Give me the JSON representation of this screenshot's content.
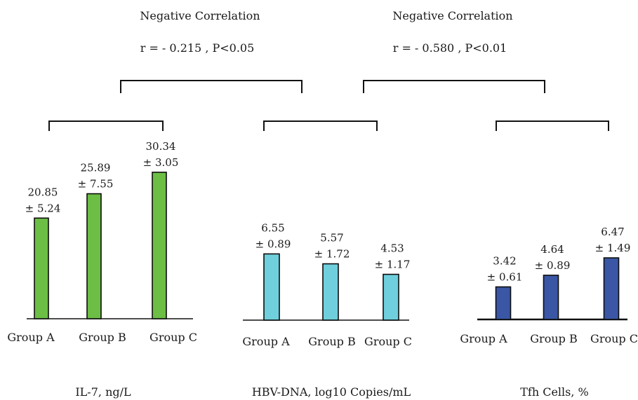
{
  "correlations": [
    {
      "title": "Negative Correlation",
      "stat": "r = - 0.215 , P<0.05"
    },
    {
      "title": "Negative Correlation",
      "stat": "r = - 0.580 , P<0.01"
    }
  ],
  "chart_data": [
    {
      "type": "bar",
      "title": "",
      "xlabel": "IL-7, ng/L",
      "ylabel": "",
      "categories": [
        "Group A",
        "Group B",
        "Group C"
      ],
      "values": [
        20.85,
        25.89,
        30.34
      ],
      "labels": [
        [
          "20.85",
          "± 5.24"
        ],
        [
          "25.89",
          "± 7.55"
        ],
        [
          "30.34",
          "± 3.05"
        ]
      ],
      "sd": [
        5.24,
        7.55,
        3.05
      ],
      "color": "#6cbe45",
      "ylim": [
        0,
        37
      ]
    },
    {
      "type": "bar",
      "title": "",
      "xlabel": "HBV-DNA, log10 Copies/mL",
      "ylabel": "",
      "categories": [
        "Group A",
        "Group B",
        "Group C"
      ],
      "values": [
        6.55,
        5.57,
        4.53
      ],
      "labels": [
        [
          "6.55",
          "± 0.89"
        ],
        [
          "5.57",
          "± 1.72"
        ],
        [
          "4.53",
          "± 1.17"
        ]
      ],
      "sd": [
        0.89,
        1.72,
        1.17
      ],
      "color": "#6fcfdc",
      "ylim": [
        0,
        16
      ]
    },
    {
      "type": "bar",
      "title": "",
      "xlabel": "Tfh Cells, %",
      "ylabel": "",
      "categories": [
        "Group A",
        "Group B",
        "Group C"
      ],
      "values": [
        3.42,
        4.64,
        6.47
      ],
      "labels": [
        [
          "3.42",
          "± 0.61"
        ],
        [
          "4.64",
          "± 0.89"
        ],
        [
          "6.47",
          "± 1.49"
        ]
      ],
      "sd": [
        0.61,
        0.89,
        1.49
      ],
      "color": "#3a56a5",
      "ylim": [
        0,
        15.6
      ]
    }
  ]
}
